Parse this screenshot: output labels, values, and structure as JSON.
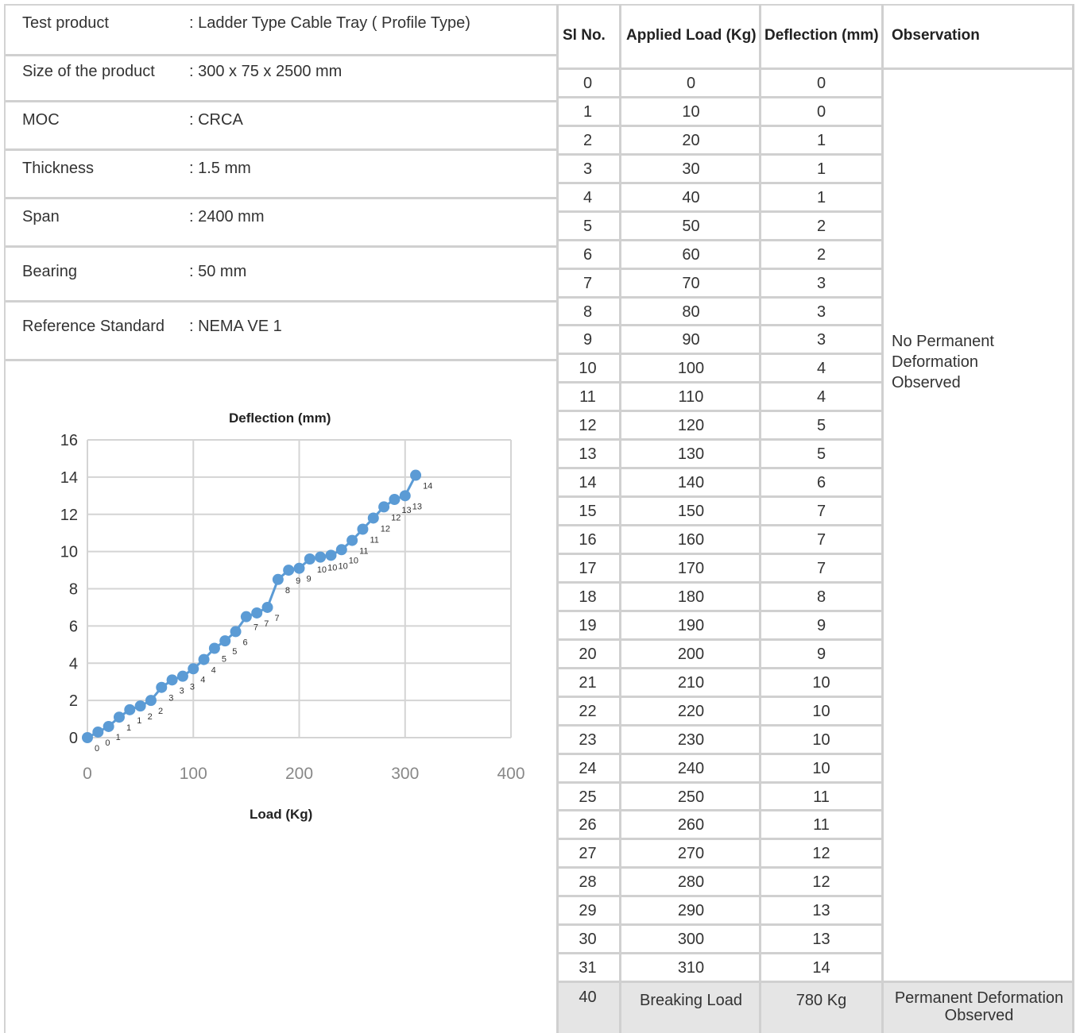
{
  "info": [
    {
      "label": "Test product",
      "value": ": Ladder Type Cable Tray ( Profile Type)"
    },
    {
      "label": "Size of the product",
      "value": ": 300 x 75 x 2500 mm"
    },
    {
      "label": "MOC",
      "value": ": CRCA"
    },
    {
      "label": "Thickness",
      "value": ": 1.5 mm"
    },
    {
      "label": "Span",
      "value": ": 2400 mm"
    },
    {
      "label": "Bearing",
      "value": ": 50 mm"
    },
    {
      "label": "Reference Standard",
      "value": ": NEMA VE 1"
    }
  ],
  "table": {
    "headers": [
      "Sl No.",
      "Applied Load (Kg)",
      "Deflection (mm)",
      "Observation"
    ],
    "rows": [
      [
        "0",
        "0",
        "0"
      ],
      [
        "1",
        "10",
        "0"
      ],
      [
        "2",
        "20",
        "1"
      ],
      [
        "3",
        "30",
        "1"
      ],
      [
        "4",
        "40",
        "1"
      ],
      [
        "5",
        "50",
        "2"
      ],
      [
        "6",
        "60",
        "2"
      ],
      [
        "7",
        "70",
        "3"
      ],
      [
        "8",
        "80",
        "3"
      ],
      [
        "9",
        "90",
        "3"
      ],
      [
        "10",
        "100",
        "4"
      ],
      [
        "11",
        "110",
        "4"
      ],
      [
        "12",
        "120",
        "5"
      ],
      [
        "13",
        "130",
        "5"
      ],
      [
        "14",
        "140",
        "6"
      ],
      [
        "15",
        "150",
        "7"
      ],
      [
        "16",
        "160",
        "7"
      ],
      [
        "17",
        "170",
        "7"
      ],
      [
        "18",
        "180",
        "8"
      ],
      [
        "19",
        "190",
        "9"
      ],
      [
        "20",
        "200",
        "9"
      ],
      [
        "21",
        "210",
        "10"
      ],
      [
        "22",
        "220",
        "10"
      ],
      [
        "23",
        "230",
        "10"
      ],
      [
        "24",
        "240",
        "10"
      ],
      [
        "25",
        "250",
        "11"
      ],
      [
        "26",
        "260",
        "11"
      ],
      [
        "27",
        "270",
        "12"
      ],
      [
        "28",
        "280",
        "12"
      ],
      [
        "29",
        "290",
        "13"
      ],
      [
        "30",
        "300",
        "13"
      ],
      [
        "31",
        "310",
        "14"
      ]
    ],
    "observation_line1": "No Permanent",
    "observation_line2": "Deformation",
    "observation_line3": "Observed",
    "footer": {
      "sl_no": "40",
      "load": "Breaking Load",
      "deflection": "780 Kg",
      "observation_line1": "Permanent Deformation",
      "observation_line2": "Observed"
    }
  },
  "chart_data": {
    "type": "line",
    "title": "Deflection (mm)",
    "xlabel": "Load (Kg)",
    "ylabel": "",
    "xlim": [
      0,
      400
    ],
    "ylim": [
      0,
      16
    ],
    "xticks": [
      0,
      100,
      200,
      300,
      400
    ],
    "yticks": [
      0,
      2,
      4,
      6,
      8,
      10,
      12,
      14,
      16
    ],
    "grid": true,
    "color": "#5b9bd5",
    "x": [
      0,
      10,
      20,
      30,
      40,
      50,
      60,
      70,
      80,
      90,
      100,
      110,
      120,
      130,
      140,
      150,
      160,
      170,
      180,
      190,
      200,
      210,
      220,
      230,
      240,
      250,
      260,
      270,
      280,
      290,
      300,
      310
    ],
    "y": [
      0,
      0.3,
      0.6,
      1.1,
      1.5,
      1.7,
      2.0,
      2.7,
      3.1,
      3.3,
      3.7,
      4.2,
      4.8,
      5.2,
      5.7,
      6.5,
      6.7,
      7.0,
      8.5,
      9.0,
      9.1,
      9.6,
      9.7,
      9.8,
      10.1,
      10.6,
      11.2,
      11.8,
      12.4,
      12.8,
      13.0,
      14.1
    ],
    "data_labels": [
      "0",
      "0",
      "1",
      "1",
      "1",
      "2",
      "2",
      "3",
      "3",
      "3",
      "4",
      "4",
      "5",
      "5",
      "6",
      "7",
      "7",
      "7",
      "8",
      "9",
      "9",
      "10",
      "10",
      "10",
      "10",
      "11",
      "11",
      "12",
      "12",
      "13",
      "13",
      "14"
    ]
  }
}
